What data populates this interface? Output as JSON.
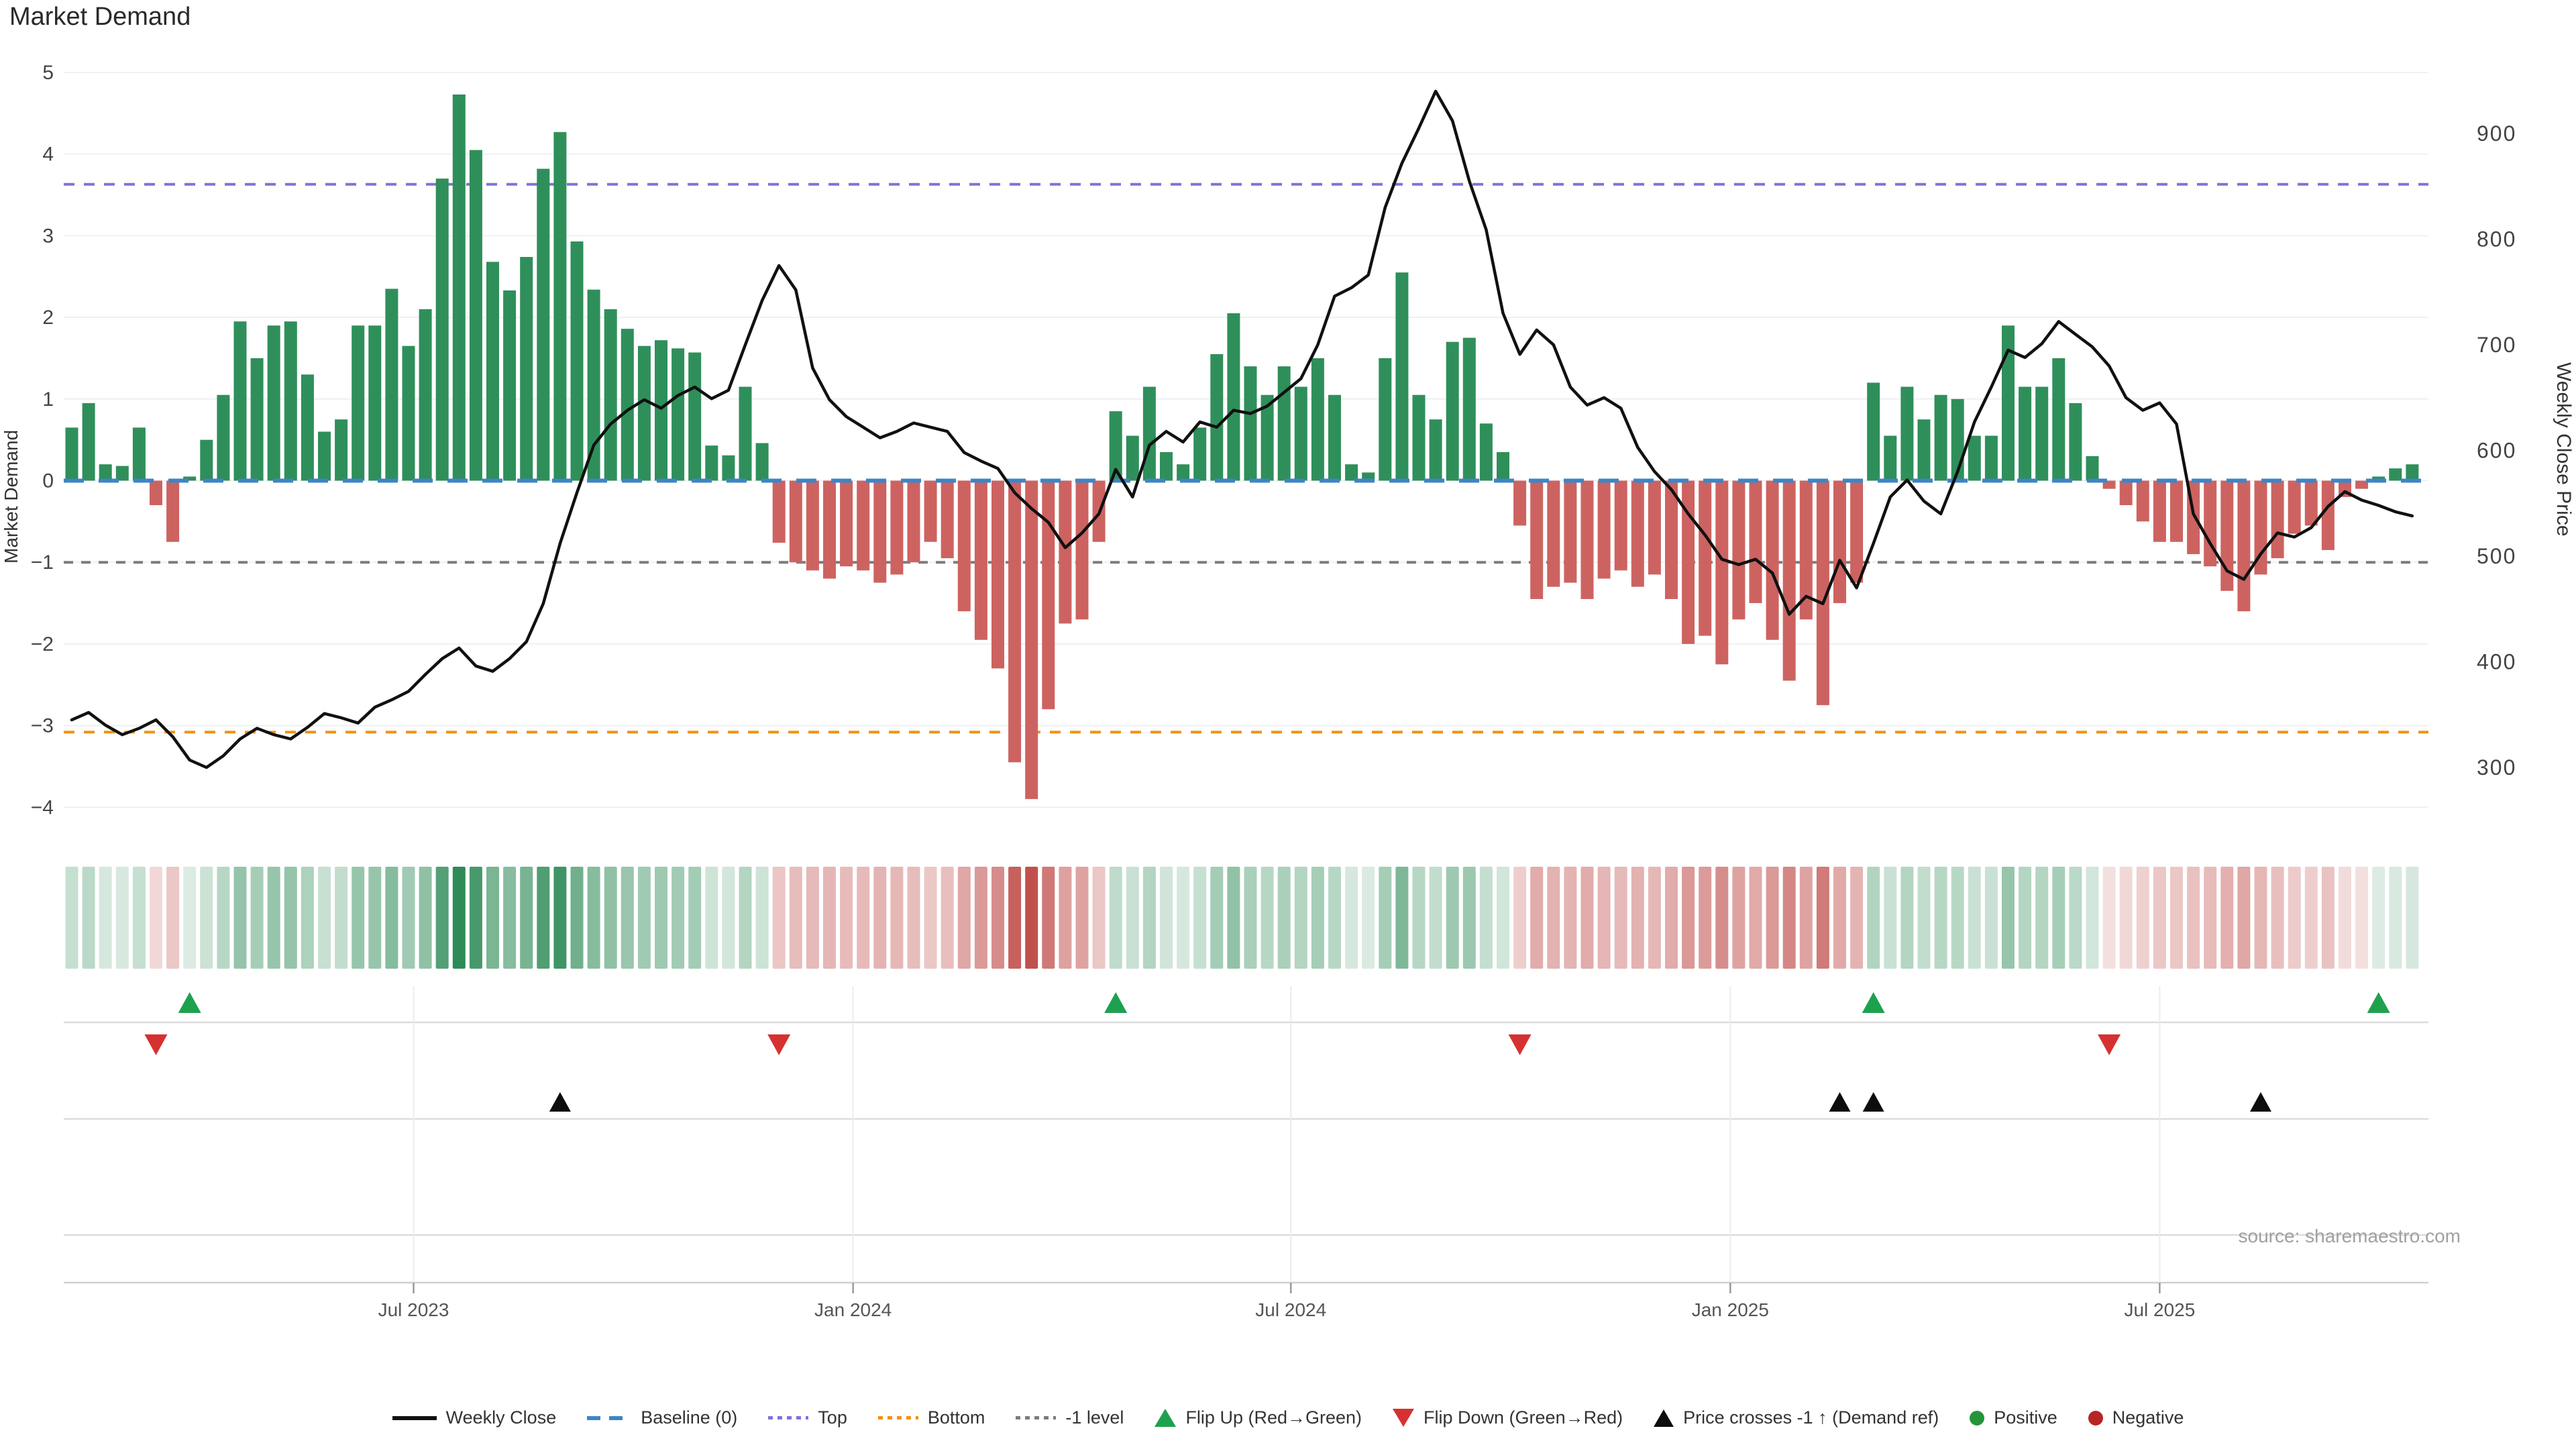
{
  "page": {
    "title": "Market Demand",
    "source": "source: sharemaestro.com"
  },
  "axes": {
    "left_title": "Market Demand",
    "right_title": "Weekly Close Price",
    "left_ticks": [
      5,
      4,
      3,
      2,
      1,
      0,
      -1,
      -2,
      -3,
      -4
    ],
    "right_ticks": [
      900,
      800,
      700,
      600,
      500,
      400,
      300
    ],
    "x_tick_labels": [
      "Jul 2023",
      "Jan 2024",
      "Jul 2024",
      "Jan 2025",
      "Jul 2025"
    ]
  },
  "legend": {
    "items": [
      {
        "label": "Weekly Close",
        "glyph": "black-line"
      },
      {
        "label": "Baseline (0)",
        "glyph": "blue-dashes"
      },
      {
        "label": "Top",
        "glyph": "purple-dots"
      },
      {
        "label": "Bottom",
        "glyph": "orange-dots"
      },
      {
        "label": "-1 level",
        "glyph": "gray-dots"
      },
      {
        "label": "Flip Up (Red→Green)",
        "glyph": "green-up-triangle"
      },
      {
        "label": "Flip Down (Green→Red)",
        "glyph": "red-down-triangle"
      },
      {
        "label": "Price crosses -1 ↑ (Demand ref)",
        "glyph": "black-up-triangle"
      },
      {
        "label": "Positive",
        "glyph": "green-dot"
      },
      {
        "label": "Negative",
        "glyph": "red-dot"
      }
    ]
  },
  "colors": {
    "bar_positive": "#2f8f5a",
    "bar_negative": "#cd6361",
    "price_line": "#111111",
    "baseline": "#3d85c6",
    "top_line": "#7b74d8",
    "bottom_line": "#f0920e",
    "minus_one_line": "#7c7c7c",
    "gridline": "#eef0f3",
    "heat_green": "#2e8b57",
    "heat_red": "#c0504d",
    "axis_text": "#444444",
    "source_text": "#a0a0a0"
  },
  "chart_data": {
    "type": "bar+line",
    "title": "Market Demand",
    "x_unit": "week",
    "xlabel": "",
    "ylabel_left": "Market Demand",
    "ylabel_right": "Weekly Close Price",
    "ylim_left": [
      -4.5,
      5.2
    ],
    "ylim_right": [
      260,
      960
    ],
    "x_tick_labels": [
      "Jul 2023",
      "Jan 2024",
      "Jul 2024",
      "Jan 2025",
      "Jul 2025"
    ],
    "x_tick_week_positions": [
      20.3,
      46.4,
      72.4,
      98.5,
      124.0
    ],
    "reference_lines": {
      "baseline": 0,
      "top": 3.63,
      "bottom": -3.08,
      "minus_one": -1
    },
    "series": [
      {
        "name": "Market Demand",
        "type": "bar",
        "axis": "left",
        "values": [
          0.65,
          0.95,
          0.2,
          0.18,
          0.65,
          -0.3,
          -0.75,
          0.05,
          0.5,
          1.05,
          1.95,
          1.5,
          1.9,
          1.95,
          1.3,
          0.6,
          0.75,
          1.9,
          1.9,
          2.35,
          1.65,
          2.1,
          3.7,
          4.73,
          4.05,
          2.68,
          2.33,
          2.74,
          3.82,
          4.27,
          2.93,
          2.34,
          2.1,
          1.86,
          1.65,
          1.72,
          1.62,
          1.57,
          0.43,
          0.31,
          1.15,
          0.46,
          -0.76,
          -1.0,
          -1.1,
          -1.2,
          -1.05,
          -1.1,
          -1.25,
          -1.15,
          -1.0,
          -0.75,
          -0.95,
          -1.6,
          -1.95,
          -2.3,
          -3.45,
          -3.9,
          -2.8,
          -1.75,
          -1.7,
          -0.75,
          0.85,
          0.55,
          1.15,
          0.35,
          0.2,
          0.65,
          1.55,
          2.05,
          1.4,
          1.05,
          1.4,
          1.15,
          1.5,
          1.05,
          0.2,
          0.1,
          1.5,
          2.55,
          1.05,
          0.75,
          1.7,
          1.75,
          0.7,
          0.35,
          -0.55,
          -1.45,
          -1.3,
          -1.25,
          -1.45,
          -1.2,
          -1.1,
          -1.3,
          -1.15,
          -1.45,
          -2.0,
          -1.9,
          -2.25,
          -1.7,
          -1.5,
          -1.95,
          -2.45,
          -1.7,
          -2.75,
          -1.5,
          -1.25,
          1.2,
          0.55,
          1.15,
          0.75,
          1.05,
          1.0,
          0.55,
          0.55,
          1.9,
          1.15,
          1.15,
          1.5,
          0.95,
          0.3,
          -0.1,
          -0.3,
          -0.5,
          -0.75,
          -0.75,
          -0.9,
          -1.05,
          -1.35,
          -1.6,
          -1.15,
          -0.95,
          -0.65,
          -0.55,
          -0.85,
          -0.2,
          -0.1,
          0.05,
          0.15,
          0.2
        ]
      },
      {
        "name": "Weekly Close",
        "type": "line",
        "axis": "right",
        "values": [
          345,
          352,
          340,
          331,
          337,
          345,
          329,
          307,
          300,
          311,
          327,
          337,
          331,
          327,
          338,
          351,
          347,
          342,
          357,
          364,
          372,
          388,
          403,
          413,
          396,
          391,
          403,
          419,
          455,
          512,
          560,
          605,
          625,
          638,
          648,
          640,
          652,
          660,
          649,
          657,
          700,
          742,
          775,
          752,
          678,
          648,
          632,
          622,
          612,
          618,
          626,
          622,
          618,
          598,
          590,
          583,
          560,
          545,
          532,
          508,
          522,
          540,
          582,
          556,
          605,
          618,
          608,
          627,
          622,
          638,
          635,
          642,
          655,
          668,
          700,
          746,
          754,
          766,
          830,
          872,
          905,
          940,
          912,
          855,
          809,
          730,
          691,
          714,
          700,
          660,
          643,
          650,
          640,
          603,
          580,
          563,
          540,
          520,
          497,
          492,
          497,
          484,
          445,
          462,
          455,
          496,
          470,
          512,
          556,
          572,
          552,
          540,
          580,
          627,
          660,
          695,
          688,
          701,
          722,
          710,
          698,
          680,
          650,
          638,
          645,
          625,
          540,
          512,
          486,
          478,
          502,
          522,
          518,
          527,
          547,
          561,
          553,
          548,
          542,
          538
        ]
      }
    ],
    "heatmap_strip": {
      "description": "weekly demand values rendered as color intensity cells, green positive / red negative",
      "mirrors_series": "Market Demand"
    },
    "markers": {
      "flip_up_weeks": [
        7,
        62,
        107,
        137
      ],
      "flip_down_weeks": [
        5,
        42,
        86,
        121
      ],
      "price_cross_weeks": [
        29,
        105,
        107,
        130
      ]
    }
  }
}
